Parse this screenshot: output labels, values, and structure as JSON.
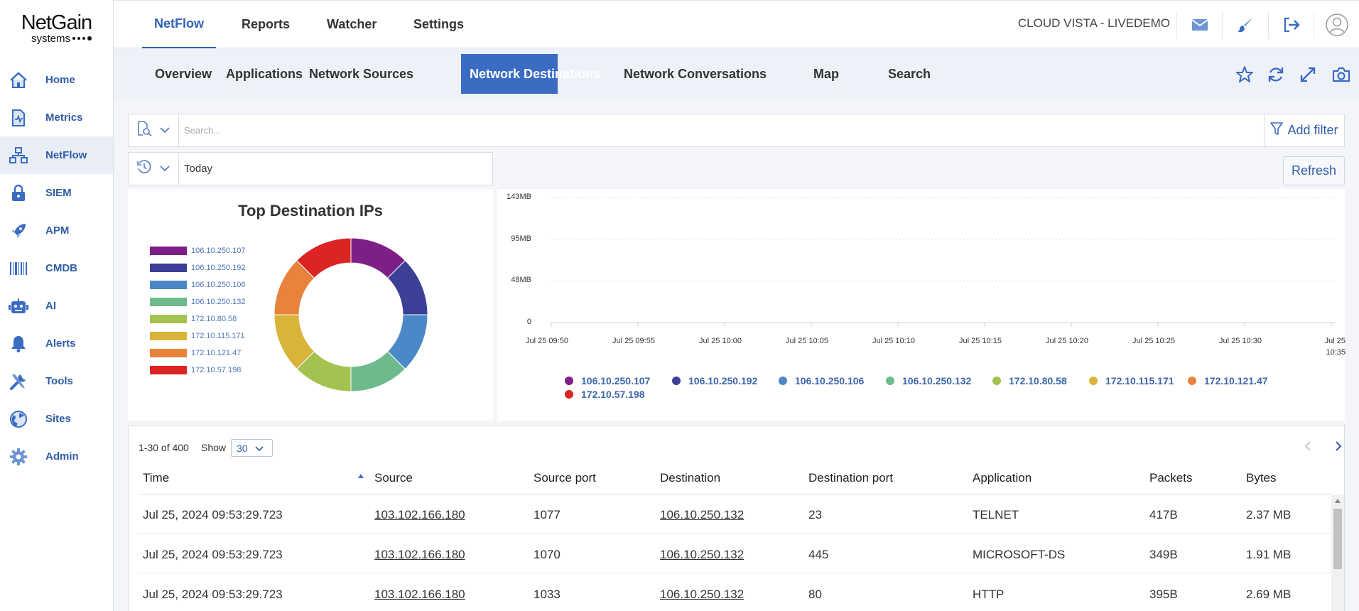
{
  "app": {
    "logo_main": "NetGain",
    "logo_sub": "systems"
  },
  "sidebar": {
    "items": [
      {
        "label": "Home",
        "icon": "home-icon"
      },
      {
        "label": "Metrics",
        "icon": "metrics-icon"
      },
      {
        "label": "NetFlow",
        "icon": "netflow-icon",
        "active": true
      },
      {
        "label": "SIEM",
        "icon": "lock-icon"
      },
      {
        "label": "APM",
        "icon": "rocket-icon"
      },
      {
        "label": "CMDB",
        "icon": "barcode-icon"
      },
      {
        "label": "AI",
        "icon": "robot-icon"
      },
      {
        "label": "Alerts",
        "icon": "bell-icon"
      },
      {
        "label": "Tools",
        "icon": "tools-icon"
      },
      {
        "label": "Sites",
        "icon": "globe-icon"
      },
      {
        "label": "Admin",
        "icon": "gear-icon"
      }
    ]
  },
  "topbar": {
    "tabs": [
      "NetFlow",
      "Reports",
      "Watcher",
      "Settings"
    ],
    "active_tab": "NetFlow",
    "org_name": "CLOUD VISTA - LIVEDEMO",
    "icons": [
      "mail-icon",
      "brush-icon",
      "logout-icon",
      "user-avatar-icon"
    ]
  },
  "subtabs": {
    "items": [
      "Overview",
      "Applications",
      "Network Sources",
      "Network Destinations",
      "Network Conversations",
      "Map",
      "Search"
    ],
    "active": "Network Destinations",
    "icons": [
      "star-icon",
      "refresh-icon",
      "expand-icon",
      "camera-icon"
    ]
  },
  "search": {
    "placeholder": "Search...",
    "value": "",
    "add_filter_label": "Add filter"
  },
  "time": {
    "value": "Today",
    "refresh_label": "Refresh"
  },
  "colors": {
    "accent": "#3a6cc4",
    "link": "#2f5da8"
  },
  "chart_data": [
    {
      "type": "pie",
      "donut": true,
      "title": "Top Destination IPs",
      "labels": [
        "106.10.250.107",
        "106.10.250.192",
        "106.10.250.106",
        "106.10.250.132",
        "172.10.80.58",
        "172.10.115.171",
        "172.10.121.47",
        "172.10.57.198"
      ],
      "values": [
        12.5,
        12.5,
        12.5,
        12.5,
        12.5,
        12.5,
        12.5,
        12.5
      ],
      "colors": [
        "#7d1f86",
        "#3b3f96",
        "#4a88c7",
        "#6dba8c",
        "#a3c24f",
        "#d9b43b",
        "#e9823a",
        "#dc2424"
      ],
      "legend": "left"
    },
    {
      "type": "line",
      "title": "",
      "x_ticks": [
        "Jul 25 09:50",
        "Jul 25 09:55",
        "Jul 25 10:00",
        "Jul 25 10:05",
        "Jul 25 10:10",
        "Jul 25 10:15",
        "Jul 25 10:20",
        "Jul 25 10:25",
        "Jul 25 10:30",
        "Jul 25 10:35"
      ],
      "y_ticks": [
        "0",
        "48MB",
        "95MB",
        "143MB"
      ],
      "ylim": [
        0,
        143
      ],
      "grid": true,
      "legend": "bottom",
      "series": [
        {
          "name": "106.10.250.107",
          "color": "#7d1f86",
          "values": []
        },
        {
          "name": "106.10.250.192",
          "color": "#3b3f96",
          "values": []
        },
        {
          "name": "106.10.250.106",
          "color": "#4a88c7",
          "values": []
        },
        {
          "name": "106.10.250.132",
          "color": "#6dba8c",
          "values": []
        },
        {
          "name": "172.10.80.58",
          "color": "#a3c24f",
          "values": []
        },
        {
          "name": "172.10.115.171",
          "color": "#d9b43b",
          "values": []
        },
        {
          "name": "172.10.121.47",
          "color": "#e9823a",
          "values": []
        },
        {
          "name": "172.10.57.198",
          "color": "#dc2424",
          "values": []
        }
      ]
    }
  ],
  "table": {
    "range_text": "1-30 of 400",
    "show_label": "Show",
    "show_value": "30",
    "columns": [
      "Time",
      "Source",
      "Source port",
      "Destination",
      "Destination port",
      "Application",
      "Packets",
      "Bytes"
    ],
    "sorted_column": "Time",
    "rows": [
      {
        "time": "Jul 25, 2024 09:53:29.723",
        "source": "103.102.166.180",
        "source_port": "1077",
        "destination": "106.10.250.132",
        "destination_port": "23",
        "application": "TELNET",
        "packets": "417B",
        "bytes": "2.37 MB"
      },
      {
        "time": "Jul 25, 2024 09:53:29.723",
        "source": "103.102.166.180",
        "source_port": "1070",
        "destination": "106.10.250.132",
        "destination_port": "445",
        "application": "MICROSOFT-DS",
        "packets": "349B",
        "bytes": "1.91 MB"
      },
      {
        "time": "Jul 25, 2024 09:53:29.723",
        "source": "103.102.166.180",
        "source_port": "1033",
        "destination": "106.10.250.132",
        "destination_port": "80",
        "application": "HTTP",
        "packets": "395B",
        "bytes": "2.69 MB"
      }
    ]
  }
}
